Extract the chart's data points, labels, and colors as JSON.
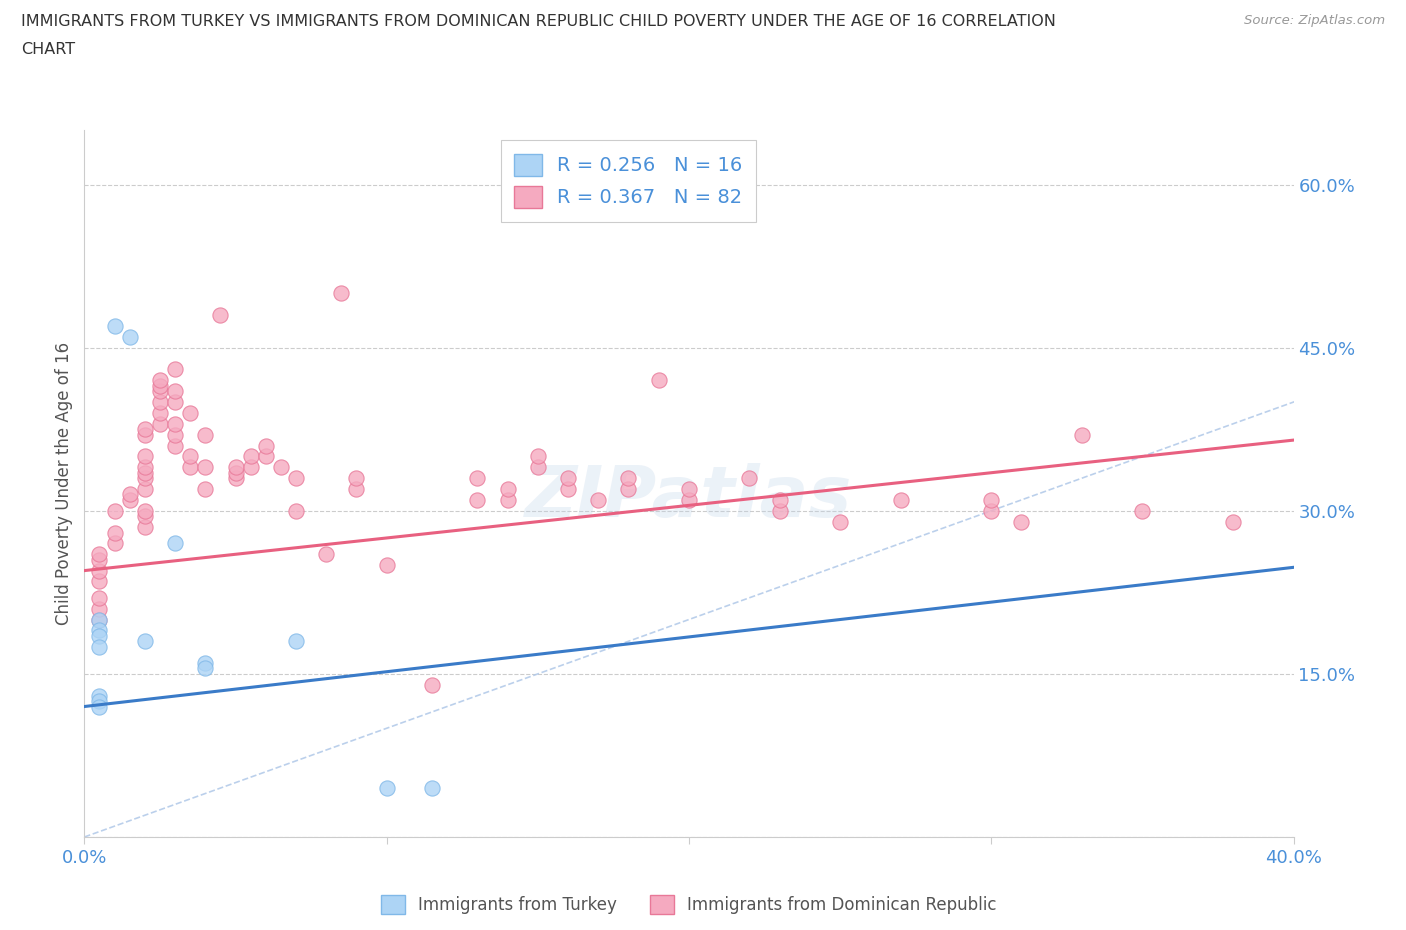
{
  "title_line1": "IMMIGRANTS FROM TURKEY VS IMMIGRANTS FROM DOMINICAN REPUBLIC CHILD POVERTY UNDER THE AGE OF 16 CORRELATION",
  "title_line2": "CHART",
  "source": "Source: ZipAtlas.com",
  "ylabel": "Child Poverty Under the Age of 16",
  "xlim": [
    0.0,
    0.4
  ],
  "ylim": [
    0.0,
    0.65
  ],
  "grid_color": "#cccccc",
  "background_color": "#ffffff",
  "turkey_color": "#add4f5",
  "turkey_edge_color": "#80b8e8",
  "dr_color": "#f5aac0",
  "dr_edge_color": "#e87898",
  "turkey_R": 0.256,
  "turkey_N": 16,
  "dr_R": 0.367,
  "dr_N": 82,
  "legend_label_turkey": "Immigrants from Turkey",
  "legend_label_dr": "Immigrants from Dominican Republic",
  "diagonal_color": "#b0c8e8",
  "turkey_line_color": "#3a7bc8",
  "dr_line_color": "#e86080",
  "watermark": "ZIPatlas",
  "tick_color": "#4a90d9",
  "turkey_line_intercept": 0.12,
  "turkey_line_slope": 0.32,
  "dr_line_intercept": 0.245,
  "dr_line_slope": 0.3,
  "turkey_scatter": [
    [
      0.005,
      0.2
    ],
    [
      0.005,
      0.19
    ],
    [
      0.005,
      0.185
    ],
    [
      0.005,
      0.175
    ],
    [
      0.005,
      0.13
    ],
    [
      0.005,
      0.125
    ],
    [
      0.005,
      0.12
    ],
    [
      0.01,
      0.47
    ],
    [
      0.015,
      0.46
    ],
    [
      0.02,
      0.18
    ],
    [
      0.03,
      0.27
    ],
    [
      0.04,
      0.16
    ],
    [
      0.04,
      0.155
    ],
    [
      0.07,
      0.18
    ],
    [
      0.1,
      0.045
    ],
    [
      0.115,
      0.045
    ]
  ],
  "dr_scatter": [
    [
      0.005,
      0.2
    ],
    [
      0.005,
      0.21
    ],
    [
      0.005,
      0.22
    ],
    [
      0.005,
      0.235
    ],
    [
      0.005,
      0.245
    ],
    [
      0.005,
      0.255
    ],
    [
      0.005,
      0.26
    ],
    [
      0.01,
      0.27
    ],
    [
      0.01,
      0.28
    ],
    [
      0.01,
      0.3
    ],
    [
      0.015,
      0.31
    ],
    [
      0.015,
      0.315
    ],
    [
      0.02,
      0.285
    ],
    [
      0.02,
      0.295
    ],
    [
      0.02,
      0.3
    ],
    [
      0.02,
      0.32
    ],
    [
      0.02,
      0.33
    ],
    [
      0.02,
      0.335
    ],
    [
      0.02,
      0.34
    ],
    [
      0.02,
      0.35
    ],
    [
      0.02,
      0.37
    ],
    [
      0.02,
      0.375
    ],
    [
      0.025,
      0.38
    ],
    [
      0.025,
      0.39
    ],
    [
      0.025,
      0.4
    ],
    [
      0.025,
      0.41
    ],
    [
      0.025,
      0.415
    ],
    [
      0.025,
      0.42
    ],
    [
      0.03,
      0.36
    ],
    [
      0.03,
      0.37
    ],
    [
      0.03,
      0.38
    ],
    [
      0.03,
      0.4
    ],
    [
      0.03,
      0.41
    ],
    [
      0.03,
      0.43
    ],
    [
      0.035,
      0.34
    ],
    [
      0.035,
      0.35
    ],
    [
      0.035,
      0.39
    ],
    [
      0.04,
      0.32
    ],
    [
      0.04,
      0.34
    ],
    [
      0.04,
      0.37
    ],
    [
      0.045,
      0.48
    ],
    [
      0.05,
      0.33
    ],
    [
      0.05,
      0.335
    ],
    [
      0.05,
      0.34
    ],
    [
      0.055,
      0.34
    ],
    [
      0.055,
      0.35
    ],
    [
      0.06,
      0.35
    ],
    [
      0.06,
      0.36
    ],
    [
      0.065,
      0.34
    ],
    [
      0.07,
      0.3
    ],
    [
      0.07,
      0.33
    ],
    [
      0.08,
      0.26
    ],
    [
      0.085,
      0.5
    ],
    [
      0.09,
      0.32
    ],
    [
      0.09,
      0.33
    ],
    [
      0.1,
      0.25
    ],
    [
      0.115,
      0.14
    ],
    [
      0.13,
      0.31
    ],
    [
      0.13,
      0.33
    ],
    [
      0.14,
      0.31
    ],
    [
      0.14,
      0.32
    ],
    [
      0.15,
      0.34
    ],
    [
      0.15,
      0.35
    ],
    [
      0.16,
      0.32
    ],
    [
      0.16,
      0.33
    ],
    [
      0.17,
      0.31
    ],
    [
      0.18,
      0.32
    ],
    [
      0.18,
      0.33
    ],
    [
      0.19,
      0.42
    ],
    [
      0.2,
      0.31
    ],
    [
      0.2,
      0.32
    ],
    [
      0.22,
      0.33
    ],
    [
      0.23,
      0.3
    ],
    [
      0.23,
      0.31
    ],
    [
      0.25,
      0.29
    ],
    [
      0.27,
      0.31
    ],
    [
      0.3,
      0.3
    ],
    [
      0.3,
      0.31
    ],
    [
      0.31,
      0.29
    ],
    [
      0.33,
      0.37
    ],
    [
      0.35,
      0.3
    ],
    [
      0.38,
      0.29
    ]
  ]
}
